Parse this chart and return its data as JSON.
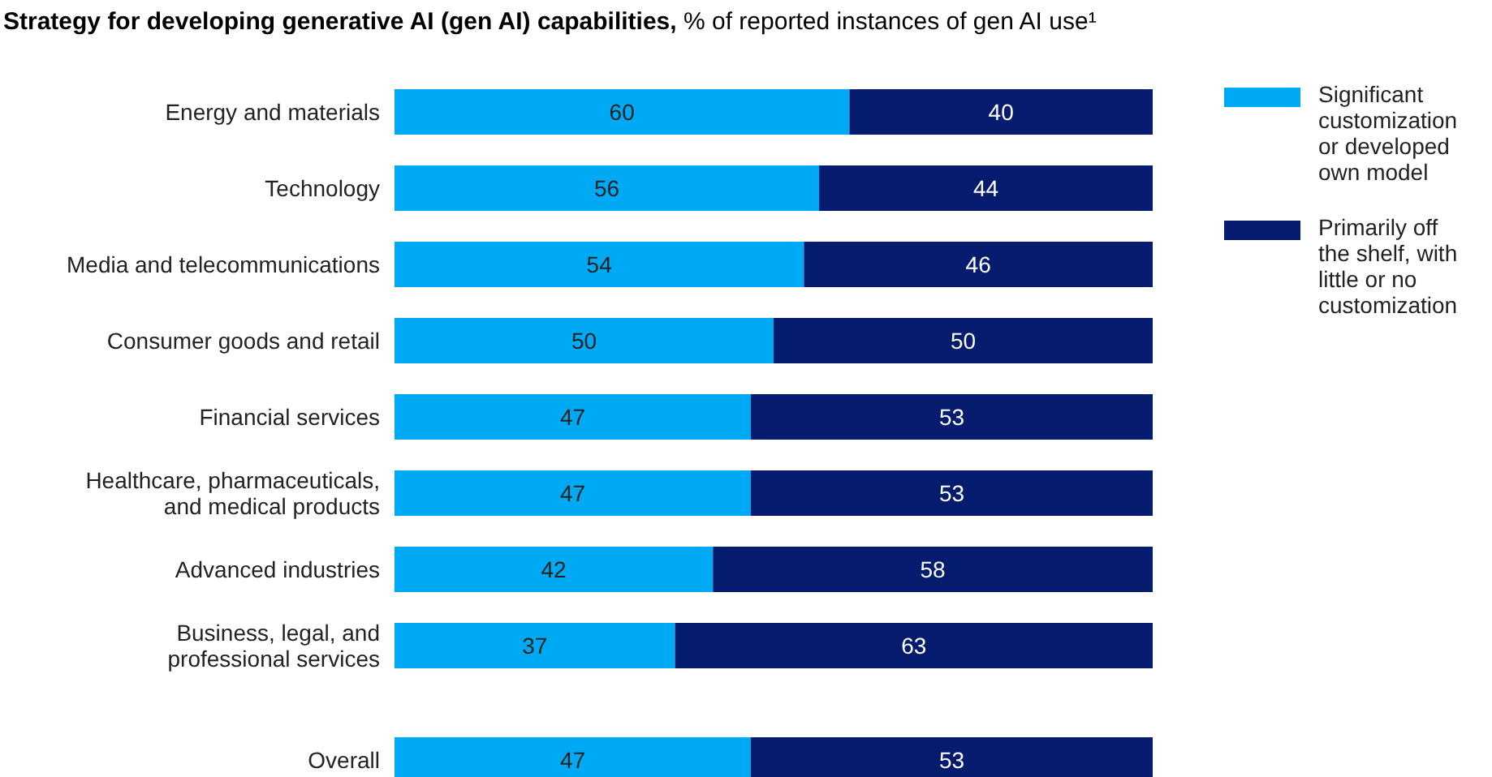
{
  "chart_data": {
    "type": "bar",
    "orientation": "horizontal",
    "stacked": true,
    "data_labels": true,
    "legend": "right",
    "grid": false,
    "title": "Strategy for developing generative AI (gen AI) capabilities,",
    "subtitle": "% of reported instances of gen AI use¹",
    "categories": [
      "Energy and materials",
      "Technology",
      "Media and telecommunications",
      "Consumer goods and retail",
      "Financial services",
      "Healthcare, pharmaceuticals, and medical products",
      "Advanced industries",
      "Business, legal, and professional services",
      null,
      "Overall"
    ],
    "series": [
      {
        "name": "Significant customization or developed own model",
        "color": "#00a9f4",
        "values": [
          60,
          56,
          54,
          50,
          47,
          47,
          42,
          37,
          null,
          47
        ]
      },
      {
        "name": "Primarily off the shelf, with little or no customization",
        "color": "#051c6e",
        "values": [
          40,
          44,
          46,
          50,
          53,
          53,
          58,
          63,
          null,
          53
        ]
      }
    ]
  }
}
